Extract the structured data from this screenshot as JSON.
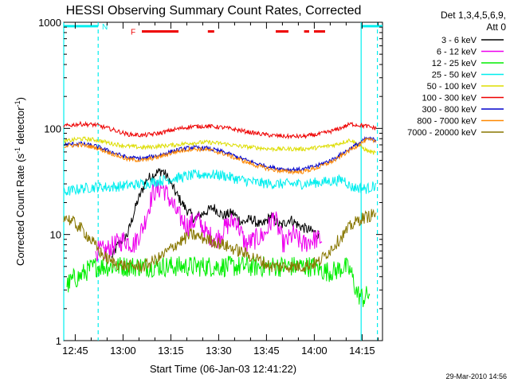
{
  "chart_data": {
    "type": "line",
    "title": "HESSI Observing Summary Count Rates, Corrected",
    "xlabel": "Start Time (06-Jan-03 12:41:22)",
    "ylabel_main": "Corrected Count Rate (s",
    "ylabel_sup1": "-1",
    "ylabel_mid": " detector",
    "ylabel_sup2": "-1",
    "ylabel_end": ")",
    "x_unit": "minutes after 12:41:22",
    "xlim": [
      0,
      100
    ],
    "ylim": [
      1,
      1000
    ],
    "yscale": "log",
    "x_ticks": [
      {
        "x": 3.6,
        "label": "12:45"
      },
      {
        "x": 18.6,
        "label": "13:00"
      },
      {
        "x": 33.6,
        "label": "13:15"
      },
      {
        "x": 48.6,
        "label": "13:30"
      },
      {
        "x": 63.6,
        "label": "13:45"
      },
      {
        "x": 78.6,
        "label": "14:00"
      },
      {
        "x": 93.6,
        "label": "14:15"
      }
    ],
    "y_ticks": [
      {
        "y": 1,
        "label": "1"
      },
      {
        "y": 10,
        "label": "10"
      },
      {
        "y": 100,
        "label": "100"
      },
      {
        "y": 1000,
        "label": "1000"
      }
    ],
    "legend_header": [
      "Det 1,3,4,5,6,9,",
      "Att 0"
    ],
    "legend_placement": "right",
    "series": [
      {
        "name": "3 - 6 keV",
        "color": "#000000",
        "x": [
          15,
          17,
          20,
          23,
          26,
          29,
          31,
          33,
          35,
          38,
          41,
          44,
          47,
          50,
          53,
          56,
          59,
          62,
          65,
          68,
          71,
          74,
          77,
          80
        ],
        "y": [
          6,
          8,
          10,
          20,
          33,
          38,
          40,
          33,
          25,
          18,
          14,
          16,
          18,
          15,
          16,
          13,
          14,
          12,
          15,
          12,
          14,
          12,
          11,
          10
        ]
      },
      {
        "name": "6 - 12 keV",
        "color": "#ee00ee",
        "x": [
          10,
          13,
          16,
          19,
          22,
          25,
          28,
          31,
          33,
          36,
          39,
          42,
          45,
          48,
          51,
          54,
          57,
          60,
          63,
          66,
          69,
          72,
          75,
          78,
          81
        ],
        "y": [
          7,
          7,
          8,
          9,
          8,
          12,
          25,
          28,
          22,
          15,
          12,
          14,
          10,
          9,
          12,
          14,
          8,
          9,
          10,
          15,
          8,
          10,
          8,
          9,
          9
        ]
      },
      {
        "name": "12 - 25 keV",
        "color": "#00ee00",
        "x": [
          1,
          3,
          5,
          7,
          10,
          14,
          20,
          30,
          40,
          50,
          60,
          70,
          78,
          82,
          85,
          88,
          90,
          92,
          94,
          96
        ],
        "y": [
          3.3,
          3.8,
          4,
          4.5,
          5,
          5,
          5,
          5,
          5,
          5,
          5,
          5,
          5,
          4.5,
          4.5,
          5,
          4.5,
          2.8,
          2.5,
          2.8
        ]
      },
      {
        "name": "25 - 50 keV",
        "color": "#00eeee",
        "x": [
          0,
          5,
          10,
          15,
          20,
          25,
          30,
          35,
          40,
          45,
          50,
          55,
          60,
          65,
          70,
          75,
          80,
          85,
          88,
          90,
          95,
          98
        ],
        "y": [
          25,
          27,
          28,
          28,
          29,
          30,
          32,
          34,
          36,
          37,
          36,
          33,
          31,
          30,
          30,
          30,
          31,
          32,
          33,
          28,
          27,
          29
        ]
      },
      {
        "name": "50 - 100 keV",
        "color": "#dddd00",
        "x": [
          0,
          5,
          10,
          15,
          20,
          25,
          30,
          35,
          40,
          45,
          50,
          55,
          60,
          65,
          70,
          75,
          80,
          85,
          90,
          95,
          98
        ],
        "y": [
          75,
          80,
          78,
          72,
          68,
          66,
          68,
          70,
          73,
          74,
          72,
          68,
          66,
          64,
          64,
          64,
          66,
          70,
          78,
          62,
          58
        ]
      },
      {
        "name": "100 - 300 keV",
        "color": "#ee0000",
        "x": [
          0,
          5,
          10,
          15,
          20,
          25,
          30,
          35,
          40,
          45,
          50,
          55,
          60,
          65,
          70,
          75,
          80,
          85,
          90,
          95,
          98
        ],
        "y": [
          105,
          110,
          108,
          98,
          88,
          86,
          90,
          98,
          104,
          105,
          102,
          96,
          90,
          86,
          84,
          84,
          88,
          96,
          110,
          105,
          100
        ]
      },
      {
        "name": "300 - 800 keV",
        "color": "#0000cc",
        "x": [
          0,
          5,
          10,
          15,
          20,
          25,
          30,
          35,
          40,
          45,
          50,
          55,
          60,
          65,
          70,
          75,
          80,
          85,
          90,
          95,
          98
        ],
        "y": [
          70,
          72,
          68,
          60,
          53,
          52,
          56,
          62,
          66,
          65,
          60,
          53,
          47,
          43,
          41,
          41,
          45,
          52,
          65,
          80,
          78
        ]
      },
      {
        "name": "800 - 7000 keV",
        "color": "#ff8800",
        "x": [
          0,
          5,
          10,
          15,
          20,
          25,
          30,
          35,
          40,
          45,
          50,
          55,
          60,
          65,
          70,
          75,
          80,
          85,
          90,
          95,
          98
        ],
        "y": [
          68,
          70,
          66,
          58,
          51,
          50,
          54,
          60,
          64,
          63,
          58,
          51,
          45,
          41,
          39,
          39,
          43,
          50,
          63,
          78,
          76
        ]
      },
      {
        "name": "7000 - 20000 keV",
        "color": "#887700",
        "x": [
          0,
          3,
          6,
          9,
          12,
          15,
          20,
          25,
          30,
          35,
          40,
          45,
          50,
          55,
          60,
          65,
          70,
          75,
          80,
          85,
          90,
          93,
          96,
          98
        ],
        "y": [
          15,
          13,
          11,
          8.5,
          6.5,
          5.5,
          5,
          5,
          6,
          8,
          10,
          9,
          8,
          7,
          6,
          5,
          5,
          5,
          5.5,
          8,
          12,
          14,
          15,
          16
        ]
      }
    ],
    "segments": [
      {
        "label": "N",
        "color": "#00eeee",
        "y_pos": 920,
        "ranges": [
          [
            0,
            10.8
          ],
          [
            93.3,
            100
          ]
        ],
        "label_x": 12
      },
      {
        "label": "F",
        "color": "#ee0000",
        "y_pos": 820,
        "ranges": [
          [
            24.5,
            36
          ],
          [
            45.2,
            47.2
          ],
          [
            66.5,
            70.5
          ],
          [
            75.4,
            77
          ],
          [
            78.5,
            82
          ]
        ],
        "label_x": 21
      }
    ],
    "vlines": [
      {
        "x": 0,
        "color": "#00eeee",
        "style": "solid"
      },
      {
        "x": 10.8,
        "color": "#00eeee",
        "style": "dashed"
      },
      {
        "x": 93.3,
        "color": "#00eeee",
        "style": "solid"
      },
      {
        "x": 98.4,
        "color": "#00eeee",
        "style": "dashed"
      }
    ],
    "timestamp": "29-Mar-2010 14:56"
  }
}
